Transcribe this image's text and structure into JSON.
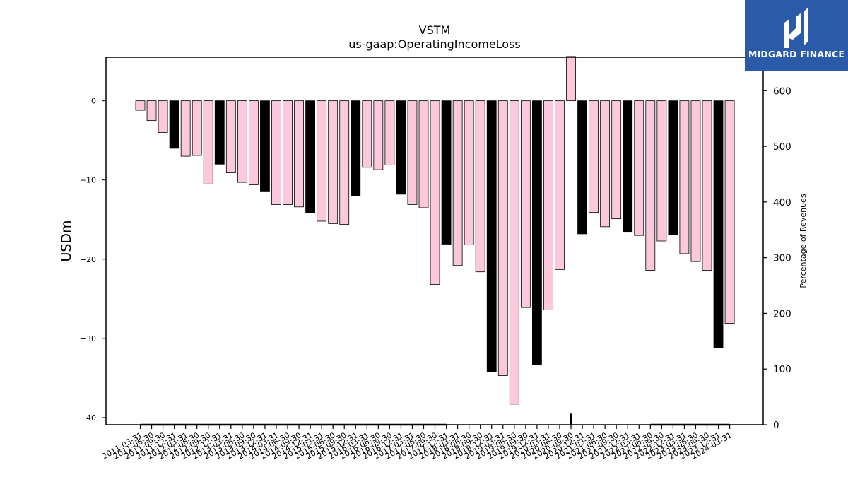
{
  "chart_data": {
    "type": "bar",
    "title": "VSTM",
    "subtitle": "us-gaap:OperatingIncomeLoss",
    "ylabel": "USDm",
    "y2label": "Percentage of Revenues",
    "ylim": [
      -40.9,
      5.5
    ],
    "y2lim": [
      0,
      660
    ],
    "yticks": [
      0,
      -10,
      -20,
      -30,
      -40
    ],
    "y2ticks": [
      0,
      100,
      200,
      300,
      400,
      500,
      600
    ],
    "grid": false,
    "colors": {
      "quarter": "#fcc8dc",
      "annual": "#000000",
      "edge": "#000000",
      "line": "#000000"
    },
    "categories": [
      "2011-03-31",
      "2011-06-30",
      "2011-09-30",
      "2011-12-31",
      "2012-03-31",
      "2012-06-30",
      "2012-09-30",
      "2012-12-31",
      "2013-03-31",
      "2013-06-30",
      "2013-09-30",
      "2013-12-31",
      "2014-03-31",
      "2014-06-30",
      "2014-09-30",
      "2014-12-31",
      "2015-03-31",
      "2015-06-30",
      "2015-09-30",
      "2015-12-31",
      "2016-03-31",
      "2016-06-30",
      "2016-09-30",
      "2016-12-31",
      "2017-03-31",
      "2017-06-30",
      "2017-09-30",
      "2017-12-31",
      "2018-03-31",
      "2018-06-30",
      "2018-09-30",
      "2018-12-31",
      "2019-03-31",
      "2019-06-30",
      "2019-09-30",
      "2019-12-31",
      "2020-03-31",
      "2020-06-30",
      "2020-09-30",
      "2020-12-31",
      "2021-03-31",
      "2021-06-30",
      "2021-09-30",
      "2021-12-31",
      "2022-03-31",
      "2022-06-30",
      "2022-09-30",
      "2022-12-31",
      "2023-03-31",
      "2023-06-30",
      "2023-09-30",
      "2023-12-31",
      "2024-03-31"
    ],
    "values": [
      -1.2,
      -2.5,
      -4.0,
      -6.0,
      -7.0,
      -6.9,
      -10.5,
      -8.0,
      -9.1,
      -10.3,
      -10.6,
      -11.4,
      -13.1,
      -13.1,
      -13.4,
      -14.1,
      -15.2,
      -15.5,
      -15.6,
      -12.0,
      -8.4,
      -8.7,
      -8.1,
      -11.8,
      -13.1,
      -13.5,
      -23.2,
      -18.1,
      -20.8,
      -18.2,
      -21.6,
      -34.2,
      -34.7,
      -38.3,
      -26.1,
      -33.3,
      -26.4,
      -21.3,
      5.6,
      -16.8,
      -14.1,
      -15.9,
      -14.9,
      -16.6,
      -17.0,
      -21.4,
      -17.7,
      -16.9,
      -19.3,
      -20.3,
      -21.4,
      -31.2,
      -28.1
    ],
    "annual": [
      false,
      false,
      false,
      true,
      false,
      false,
      false,
      true,
      false,
      false,
      false,
      true,
      false,
      false,
      false,
      true,
      false,
      false,
      false,
      true,
      false,
      false,
      false,
      true,
      false,
      false,
      false,
      true,
      false,
      false,
      false,
      true,
      false,
      false,
      false,
      true,
      false,
      false,
      false,
      true,
      false,
      false,
      false,
      true,
      false,
      false,
      false,
      true,
      false,
      false,
      false,
      true,
      false
    ],
    "pct_revenue": [
      0,
      0,
      0,
      0,
      0,
      0,
      0,
      0,
      0,
      0,
      0,
      0,
      0,
      0,
      0,
      0,
      0,
      0,
      0,
      0,
      0,
      0,
      0,
      0,
      0,
      0,
      0,
      0,
      null,
      null,
      null,
      null,
      null,
      null,
      null,
      null,
      null,
      null,
      20,
      null,
      null,
      null,
      null,
      null,
      null,
      0,
      0,
      0,
      0,
      0,
      0,
      0,
      0
    ]
  },
  "logo": {
    "text": "MIDGARD FINANCE"
  }
}
